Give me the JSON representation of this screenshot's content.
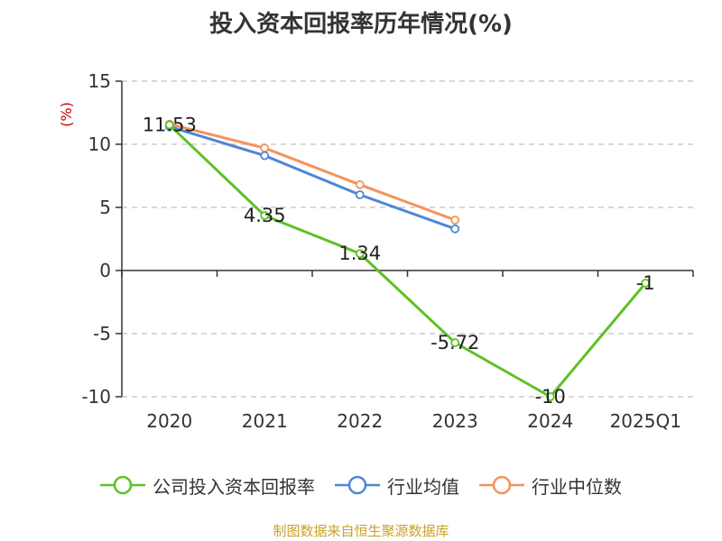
{
  "title": "投入资本回报率历年情况(%)",
  "unit_label": "(%)",
  "source": "制图数据来自恒生聚源数据库",
  "colors": {
    "axis": "#333333",
    "grid": "#cccccc",
    "unit": "#cc0000",
    "source": "#c9a227"
  },
  "chart_data": {
    "type": "line",
    "title": "投入资本回报率历年情况(%)",
    "ylabel": "(%)",
    "categories": [
      "2020",
      "2021",
      "2022",
      "2023",
      "2024",
      "2025Q1"
    ],
    "ylim": [
      -10,
      15
    ],
    "yticks": [
      15,
      10,
      5,
      0,
      -5,
      -10
    ],
    "grid": true,
    "legend_position": "bottom",
    "series": [
      {
        "name": "公司投入资本回报率",
        "color": "#5ec124",
        "values": [
          11.53,
          4.35,
          1.34,
          -5.72,
          -10,
          -1
        ],
        "labels": [
          "11.53",
          "4.35",
          "1.34",
          "-5.72",
          "-10",
          "-1"
        ]
      },
      {
        "name": "行业均值",
        "color": "#4f86d6",
        "values": [
          11.4,
          9.1,
          6.0,
          3.3,
          null,
          null
        ]
      },
      {
        "name": "行业中位数",
        "color": "#f4935b",
        "values": [
          11.6,
          9.7,
          6.8,
          4.0,
          null,
          null
        ]
      }
    ]
  }
}
